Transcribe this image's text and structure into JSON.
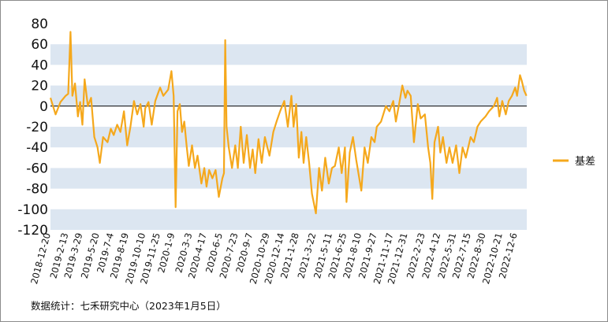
{
  "chart_data": {
    "type": "line",
    "series": [
      {
        "name": "基差",
        "color": "#F5A81C",
        "points": [
          [
            "2018-12-20",
            8
          ],
          [
            "2019-01-05",
            -8
          ],
          [
            "2019-01-20",
            4
          ],
          [
            "2019-02-05",
            10
          ],
          [
            "2019-02-13",
            12
          ],
          [
            "2019-02-20",
            72
          ],
          [
            "2019-02-26",
            10
          ],
          [
            "2019-03-06",
            22
          ],
          [
            "2019-03-15",
            -10
          ],
          [
            "2019-03-22",
            4
          ],
          [
            "2019-03-29",
            -18
          ],
          [
            "2019-04-05",
            26
          ],
          [
            "2019-04-15",
            0
          ],
          [
            "2019-04-25",
            8
          ],
          [
            "2019-05-05",
            -30
          ],
          [
            "2019-05-15",
            -40
          ],
          [
            "2019-05-22",
            -55
          ],
          [
            "2019-06-01",
            -30
          ],
          [
            "2019-06-15",
            -35
          ],
          [
            "2019-06-25",
            -22
          ],
          [
            "2019-07-04",
            -28
          ],
          [
            "2019-07-15",
            -18
          ],
          [
            "2019-07-25",
            -25
          ],
          [
            "2019-08-05",
            -5
          ],
          [
            "2019-08-15",
            -38
          ],
          [
            "2019-08-25",
            -20
          ],
          [
            "2019-09-05",
            5
          ],
          [
            "2019-09-15",
            -8
          ],
          [
            "2019-09-25",
            2
          ],
          [
            "2019-10-05",
            -20
          ],
          [
            "2019-10-10",
            -2
          ],
          [
            "2019-10-20",
            4
          ],
          [
            "2019-10-30",
            -18
          ],
          [
            "2019-11-10",
            5
          ],
          [
            "2019-11-25",
            18
          ],
          [
            "2019-12-05",
            10
          ],
          [
            "2019-12-20",
            16
          ],
          [
            "2019-12-30",
            34
          ],
          [
            "2020-01-06",
            10
          ],
          [
            "2020-01-12",
            -98
          ],
          [
            "2020-01-18",
            -5
          ],
          [
            "2020-01-25",
            2
          ],
          [
            "2020-02-01",
            -25
          ],
          [
            "2020-02-08",
            -15
          ],
          [
            "2020-02-15",
            -38
          ],
          [
            "2020-02-22",
            -58
          ],
          [
            "2020-03-03",
            -38
          ],
          [
            "2020-03-12",
            -60
          ],
          [
            "2020-03-20",
            -48
          ],
          [
            "2020-04-01",
            -75
          ],
          [
            "2020-04-10",
            -60
          ],
          [
            "2020-04-17",
            -78
          ],
          [
            "2020-04-25",
            -62
          ],
          [
            "2020-05-05",
            -70
          ],
          [
            "2020-05-15",
            -62
          ],
          [
            "2020-05-25",
            -88
          ],
          [
            "2020-06-05",
            -70
          ],
          [
            "2020-06-10",
            -65
          ],
          [
            "2020-06-14",
            64
          ],
          [
            "2020-06-18",
            -20
          ],
          [
            "2020-06-25",
            -40
          ],
          [
            "2020-07-05",
            -60
          ],
          [
            "2020-07-15",
            -38
          ],
          [
            "2020-07-23",
            -60
          ],
          [
            "2020-08-01",
            -20
          ],
          [
            "2020-08-10",
            -55
          ],
          [
            "2020-08-20",
            -28
          ],
          [
            "2020-08-30",
            -60
          ],
          [
            "2020-09-07",
            -42
          ],
          [
            "2020-09-15",
            -65
          ],
          [
            "2020-09-25",
            -32
          ],
          [
            "2020-10-05",
            -55
          ],
          [
            "2020-10-15",
            -30
          ],
          [
            "2020-10-29",
            -48
          ],
          [
            "2020-11-10",
            -25
          ],
          [
            "2020-11-20",
            -15
          ],
          [
            "2020-12-01",
            -5
          ],
          [
            "2020-12-14",
            5
          ],
          [
            "2020-12-25",
            -20
          ],
          [
            "2021-01-05",
            10
          ],
          [
            "2021-01-12",
            -20
          ],
          [
            "2021-01-20",
            2
          ],
          [
            "2021-01-28",
            -50
          ],
          [
            "2021-02-05",
            -25
          ],
          [
            "2021-02-12",
            -55
          ],
          [
            "2021-02-20",
            -30
          ],
          [
            "2021-03-01",
            -55
          ],
          [
            "2021-03-10",
            -85
          ],
          [
            "2021-03-22",
            -104
          ],
          [
            "2021-04-01",
            -60
          ],
          [
            "2021-04-10",
            -82
          ],
          [
            "2021-04-20",
            -50
          ],
          [
            "2021-05-01",
            -75
          ],
          [
            "2021-05-11",
            -60
          ],
          [
            "2021-05-20",
            -58
          ],
          [
            "2021-06-01",
            -40
          ],
          [
            "2021-06-10",
            -65
          ],
          [
            "2021-06-20",
            -40
          ],
          [
            "2021-06-25",
            -93
          ],
          [
            "2021-07-05",
            -45
          ],
          [
            "2021-07-15",
            -30
          ],
          [
            "2021-07-25",
            -52
          ],
          [
            "2021-08-10",
            -82
          ],
          [
            "2021-08-20",
            -40
          ],
          [
            "2021-08-30",
            -55
          ],
          [
            "2021-09-10",
            -30
          ],
          [
            "2021-09-20",
            -35
          ],
          [
            "2021-09-27",
            -20
          ],
          [
            "2021-10-10",
            -15
          ],
          [
            "2021-10-25",
            0
          ],
          [
            "2021-11-05",
            -5
          ],
          [
            "2021-11-17",
            5
          ],
          [
            "2021-11-25",
            -15
          ],
          [
            "2021-12-05",
            2
          ],
          [
            "2021-12-15",
            20
          ],
          [
            "2021-12-25",
            8
          ],
          [
            "2021-12-31",
            15
          ],
          [
            "2022-01-10",
            10
          ],
          [
            "2022-01-20",
            -35
          ],
          [
            "2022-02-01",
            2
          ],
          [
            "2022-02-10",
            -12
          ],
          [
            "2022-02-23",
            -8
          ],
          [
            "2022-03-05",
            -40
          ],
          [
            "2022-03-12",
            -55
          ],
          [
            "2022-03-18",
            -90
          ],
          [
            "2022-03-25",
            -35
          ],
          [
            "2022-04-05",
            -20
          ],
          [
            "2022-04-12",
            -45
          ],
          [
            "2022-04-20",
            -30
          ],
          [
            "2022-05-01",
            -55
          ],
          [
            "2022-05-10",
            -40
          ],
          [
            "2022-05-20",
            -55
          ],
          [
            "2022-05-31",
            -38
          ],
          [
            "2022-06-10",
            -65
          ],
          [
            "2022-06-20",
            -40
          ],
          [
            "2022-06-30",
            -50
          ],
          [
            "2022-07-15",
            -30
          ],
          [
            "2022-07-25",
            -35
          ],
          [
            "2022-08-05",
            -20
          ],
          [
            "2022-08-15",
            -15
          ],
          [
            "2022-08-30",
            -10
          ],
          [
            "2022-09-10",
            -5
          ],
          [
            "2022-09-25",
            0
          ],
          [
            "2022-10-05",
            8
          ],
          [
            "2022-10-12",
            -10
          ],
          [
            "2022-10-21",
            5
          ],
          [
            "2022-11-01",
            -8
          ],
          [
            "2022-11-10",
            5
          ],
          [
            "2022-11-20",
            10
          ],
          [
            "2022-11-30",
            18
          ],
          [
            "2022-12-06",
            10
          ],
          [
            "2022-12-15",
            30
          ],
          [
            "2022-12-20",
            25
          ],
          [
            "2022-12-28",
            15
          ],
          [
            "2023-01-04",
            10
          ]
        ]
      }
    ],
    "x_tick_labels": [
      "2018-12-20",
      "2019-2-13",
      "2019-3-29",
      "2019-5-20",
      "2019-7-4",
      "2019-8-19",
      "2019-10-10",
      "2019-11-25",
      "2020-1-9",
      "2020-3-3",
      "2020-4-17",
      "2020-6-5",
      "2020-7-23",
      "2020-9-7",
      "2020-10-29",
      "2020-12-14",
      "2021-1-28",
      "2021-3-22",
      "2021-5-11",
      "2021-6-25",
      "2021-8-10",
      "2021-9-27",
      "2021-11-17",
      "2021-12-31",
      "2022-2-23",
      "2022-4-12",
      "2022-5-31",
      "2022-7-15",
      "2022-8-30",
      "2022-10-21",
      "2022-12-6"
    ],
    "x_tick_dates": [
      "2018-12-20",
      "2019-02-13",
      "2019-03-29",
      "2019-05-20",
      "2019-07-04",
      "2019-08-19",
      "2019-10-10",
      "2019-11-25",
      "2020-01-09",
      "2020-03-03",
      "2020-04-17",
      "2020-06-05",
      "2020-07-23",
      "2020-09-07",
      "2020-10-29",
      "2020-12-14",
      "2021-01-28",
      "2021-03-22",
      "2021-05-11",
      "2021-06-25",
      "2021-08-10",
      "2021-09-27",
      "2021-11-17",
      "2021-12-31",
      "2022-02-23",
      "2022-04-12",
      "2022-05-31",
      "2022-07-15",
      "2022-08-30",
      "2022-10-21",
      "2022-12-06"
    ],
    "x_range": [
      "2018-12-20",
      "2023-01-05"
    ],
    "y_ticks": [
      80,
      60,
      40,
      20,
      0,
      -20,
      -40,
      -60,
      -80,
      -100,
      -120
    ],
    "ylim": [
      -120,
      80
    ],
    "band_color": "#DCE6F1",
    "zero_line_color": "#000000",
    "legend_position": "right",
    "title": "",
    "xlabel": "",
    "ylabel": ""
  },
  "source_note": "数据统计：七禾研究中心（2023年1月5日）"
}
